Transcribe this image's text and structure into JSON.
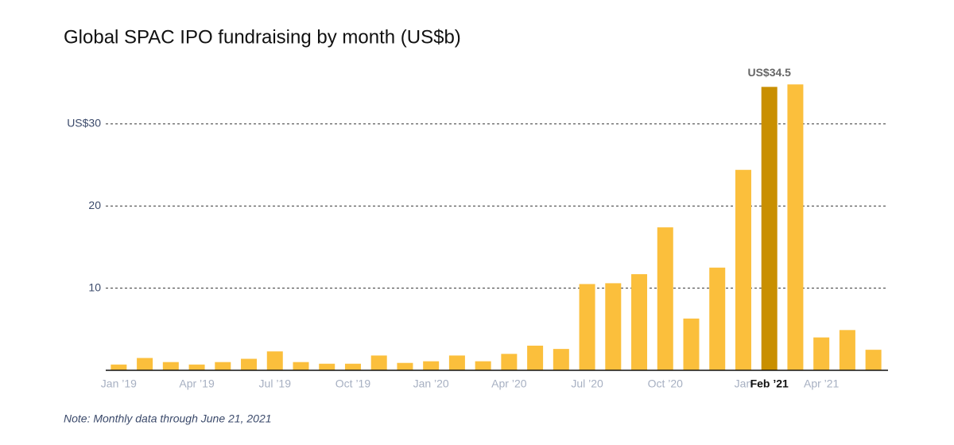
{
  "chart_data": {
    "type": "bar",
    "title": "Global SPAC IPO fundraising by month (US$b)",
    "note": "Note: Monthly data through June 21, 2021",
    "categories": [
      "Jan ’19",
      null,
      null,
      "Apr ’19",
      null,
      null,
      "Jul ’19",
      null,
      null,
      "Oct ’19",
      null,
      null,
      "Jan ’20",
      null,
      null,
      "Apr ’20",
      null,
      null,
      "Jul ’20",
      null,
      null,
      "Oct ’20",
      null,
      null,
      "Jan",
      "Feb ’21",
      null,
      "Apr ’21",
      null,
      null
    ],
    "values": [
      0.7,
      1.5,
      1.0,
      0.7,
      1.0,
      1.4,
      2.3,
      1.0,
      0.8,
      0.8,
      1.8,
      0.9,
      1.1,
      1.8,
      1.1,
      2.0,
      3.0,
      2.6,
      10.5,
      10.6,
      11.7,
      17.4,
      6.3,
      12.5,
      24.4,
      34.5,
      34.8,
      4.0,
      4.9,
      2.5
    ],
    "value_labels": [
      null,
      null,
      null,
      null,
      null,
      null,
      null,
      null,
      null,
      null,
      null,
      null,
      null,
      null,
      null,
      null,
      null,
      null,
      null,
      null,
      null,
      null,
      null,
      null,
      null,
      "US$34.5",
      null,
      null,
      null,
      null
    ],
    "highlight_index": 25,
    "color": "#fbbf3c",
    "highlight_color": "#c98f00",
    "ylim": [
      0,
      35.5
    ],
    "yticks": [
      10,
      20,
      {
        "value": 30,
        "label": "US$30"
      }
    ],
    "grid": true
  }
}
